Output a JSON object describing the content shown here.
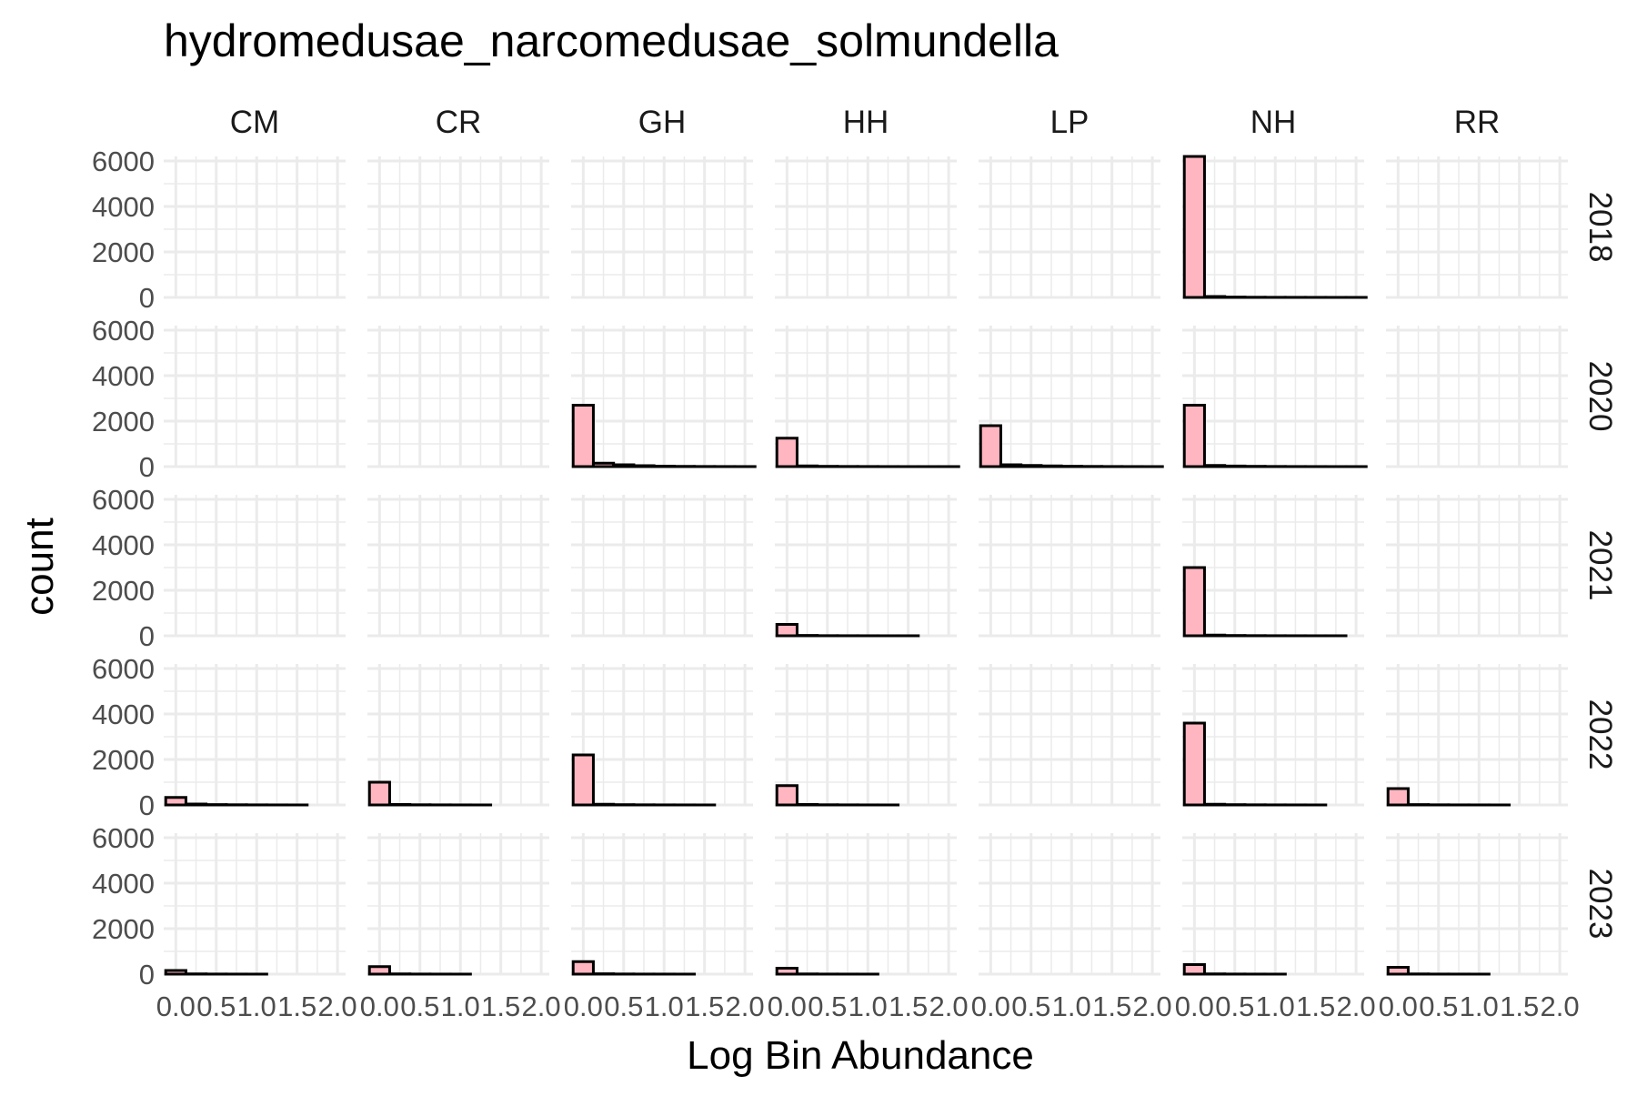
{
  "chart_data": {
    "type": "bar",
    "subtype": "faceted histogram",
    "title": "hydromedusae_narcomedusae_solmundella",
    "xlabel": "Log Bin Abundance",
    "ylabel": "count",
    "columns": [
      "CM",
      "CR",
      "GH",
      "HH",
      "LP",
      "NH",
      "RR"
    ],
    "rows": [
      "2018",
      "2020",
      "2021",
      "2022",
      "2023"
    ],
    "xlim": [
      -0.15,
      2.1
    ],
    "ylim": [
      0,
      6200
    ],
    "x_ticks": [
      "0.0",
      "0.5",
      "1.0",
      "1.5",
      "2.0"
    ],
    "y_ticks": [
      "0",
      "2000",
      "4000",
      "6000"
    ],
    "bin_width": 0.25,
    "bin_starts": [
      -0.125,
      0.125,
      0.375,
      0.625,
      0.875,
      1.125,
      1.375,
      1.625,
      1.875
    ],
    "grid": true,
    "bar_fill": "#FFB6C1",
    "bar_outline": "#000000",
    "grid_color": "#EBEBEB",
    "panels": [
      {
        "row": "2018",
        "col": "CM",
        "counts": null
      },
      {
        "row": "2018",
        "col": "CR",
        "counts": null
      },
      {
        "row": "2018",
        "col": "GH",
        "counts": null
      },
      {
        "row": "2018",
        "col": "HH",
        "counts": null
      },
      {
        "row": "2018",
        "col": "LP",
        "counts": null
      },
      {
        "row": "2018",
        "col": "NH",
        "counts": [
          6200,
          40,
          15,
          8,
          5,
          4,
          3,
          2,
          2
        ]
      },
      {
        "row": "2018",
        "col": "RR",
        "counts": null
      },
      {
        "row": "2020",
        "col": "CM",
        "counts": null
      },
      {
        "row": "2020",
        "col": "CR",
        "counts": null
      },
      {
        "row": "2020",
        "col": "GH",
        "counts": [
          2700,
          150,
          80,
          40,
          20,
          10,
          5,
          3,
          2
        ]
      },
      {
        "row": "2020",
        "col": "HH",
        "counts": [
          1250,
          30,
          12,
          6,
          4,
          2,
          1,
          1,
          1
        ]
      },
      {
        "row": "2020",
        "col": "LP",
        "counts": [
          1800,
          80,
          50,
          30,
          15,
          8,
          4,
          2,
          1
        ]
      },
      {
        "row": "2020",
        "col": "NH",
        "counts": [
          2700,
          50,
          25,
          12,
          6,
          3,
          2,
          1,
          1
        ]
      },
      {
        "row": "2020",
        "col": "RR",
        "counts": null
      },
      {
        "row": "2021",
        "col": "CM",
        "counts": null
      },
      {
        "row": "2021",
        "col": "CR",
        "counts": null
      },
      {
        "row": "2021",
        "col": "GH",
        "counts": null
      },
      {
        "row": "2021",
        "col": "HH",
        "counts": [
          500,
          15,
          5,
          3,
          2,
          1,
          1,
          0,
          0
        ]
      },
      {
        "row": "2021",
        "col": "LP",
        "counts": null
      },
      {
        "row": "2021",
        "col": "NH",
        "counts": [
          3000,
          30,
          12,
          6,
          3,
          2,
          1,
          1,
          0
        ]
      },
      {
        "row": "2021",
        "col": "RR",
        "counts": null
      },
      {
        "row": "2022",
        "col": "CM",
        "counts": [
          330,
          40,
          15,
          8,
          4,
          2,
          1,
          0,
          0
        ]
      },
      {
        "row": "2022",
        "col": "CR",
        "counts": [
          1000,
          20,
          8,
          4,
          2,
          1,
          0,
          0,
          0
        ]
      },
      {
        "row": "2022",
        "col": "GH",
        "counts": [
          2200,
          30,
          12,
          6,
          3,
          2,
          1,
          0,
          0
        ]
      },
      {
        "row": "2022",
        "col": "HH",
        "counts": [
          850,
          20,
          8,
          4,
          2,
          1,
          0,
          0,
          0
        ]
      },
      {
        "row": "2022",
        "col": "LP",
        "counts": null
      },
      {
        "row": "2022",
        "col": "NH",
        "counts": [
          3600,
          30,
          12,
          6,
          3,
          2,
          1,
          0,
          0
        ]
      },
      {
        "row": "2022",
        "col": "RR",
        "counts": [
          720,
          15,
          6,
          3,
          2,
          1,
          0,
          0,
          0
        ]
      },
      {
        "row": "2023",
        "col": "CM",
        "counts": [
          160,
          10,
          4,
          2,
          1,
          0,
          0,
          0,
          0
        ]
      },
      {
        "row": "2023",
        "col": "CR",
        "counts": [
          330,
          10,
          4,
          2,
          1,
          0,
          0,
          0,
          0
        ]
      },
      {
        "row": "2023",
        "col": "GH",
        "counts": [
          550,
          15,
          6,
          3,
          2,
          1,
          0,
          0,
          0
        ]
      },
      {
        "row": "2023",
        "col": "HH",
        "counts": [
          260,
          8,
          3,
          2,
          1,
          0,
          0,
          0,
          0
        ]
      },
      {
        "row": "2023",
        "col": "LP",
        "counts": null
      },
      {
        "row": "2023",
        "col": "NH",
        "counts": [
          420,
          10,
          4,
          2,
          1,
          0,
          0,
          0,
          0
        ]
      },
      {
        "row": "2023",
        "col": "RR",
        "counts": [
          300,
          8,
          3,
          2,
          1,
          0,
          0,
          0,
          0
        ]
      }
    ]
  }
}
